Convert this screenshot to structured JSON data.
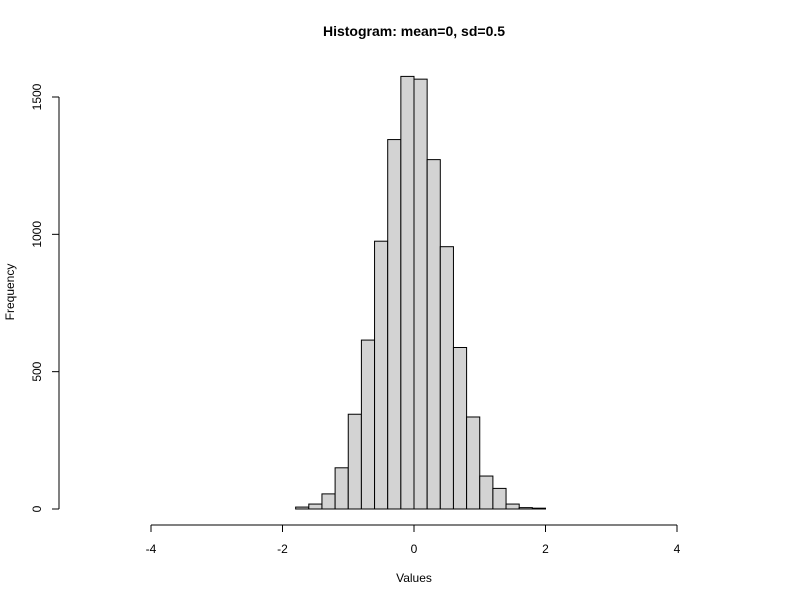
{
  "chart_data": {
    "type": "bar",
    "title": "Histogram: mean=0, sd=0.5",
    "xlabel": "Values",
    "ylabel": "Frequency",
    "xlim": [
      -4,
      4
    ],
    "ylim": [
      0,
      1600
    ],
    "x_ticks": [
      -4,
      -2,
      0,
      2,
      4
    ],
    "y_ticks": [
      0,
      500,
      1000,
      1500
    ],
    "bin_width": 0.2,
    "bars": [
      {
        "start": -1.8,
        "end": -1.6,
        "count": 7
      },
      {
        "start": -1.6,
        "end": -1.4,
        "count": 18
      },
      {
        "start": -1.4,
        "end": -1.2,
        "count": 55
      },
      {
        "start": -1.2,
        "end": -1.0,
        "count": 150
      },
      {
        "start": -1.0,
        "end": -0.8,
        "count": 345
      },
      {
        "start": -0.8,
        "end": -0.6,
        "count": 615
      },
      {
        "start": -0.6,
        "end": -0.4,
        "count": 975
      },
      {
        "start": -0.4,
        "end": -0.2,
        "count": 1345
      },
      {
        "start": -0.2,
        "end": 0.0,
        "count": 1575
      },
      {
        "start": 0.0,
        "end": 0.2,
        "count": 1565
      },
      {
        "start": 0.2,
        "end": 0.4,
        "count": 1272
      },
      {
        "start": 0.4,
        "end": 0.6,
        "count": 955
      },
      {
        "start": 0.6,
        "end": 0.8,
        "count": 588
      },
      {
        "start": 0.8,
        "end": 1.0,
        "count": 335
      },
      {
        "start": 1.0,
        "end": 1.2,
        "count": 120
      },
      {
        "start": 1.2,
        "end": 1.4,
        "count": 75
      },
      {
        "start": 1.4,
        "end": 1.6,
        "count": 18
      },
      {
        "start": 1.6,
        "end": 1.8,
        "count": 5
      },
      {
        "start": 1.8,
        "end": 2.0,
        "count": 3
      }
    ],
    "bar_fill": "#d3d3d3",
    "grid": false,
    "legend": "none"
  }
}
